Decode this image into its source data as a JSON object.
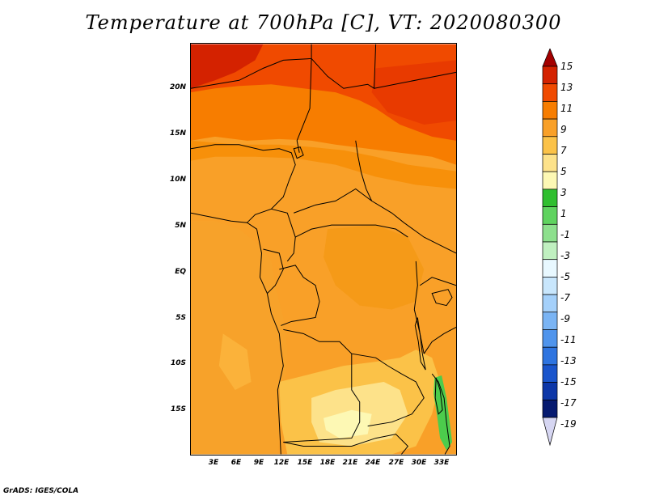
{
  "title": "Temperature at 700hPa [C], VT: 2020080300",
  "credit": "GrADS: IGES/COLA",
  "lat_labels": [
    "20N",
    "15N",
    "10N",
    "5N",
    "EQ",
    "5S",
    "10S",
    "15S"
  ],
  "lon_labels": [
    "3E",
    "6E",
    "9E",
    "12E",
    "15E",
    "18E",
    "21E",
    "24E",
    "27E",
    "30E",
    "33E"
  ],
  "colorbar": {
    "labels": [
      "15",
      "13",
      "11",
      "9",
      "7",
      "5",
      "3",
      "1",
      "-1",
      "-3",
      "-5",
      "-7",
      "-9",
      "-11",
      "-13",
      "-15",
      "-17",
      "-19"
    ],
    "colors": [
      "#a30000",
      "#d42200",
      "#f04a00",
      "#f77d00",
      "#f9a028",
      "#fbc248",
      "#fde28a",
      "#fdf8b4",
      "#2fbf2f",
      "#5fd35f",
      "#8de08d",
      "#c0f0c0",
      "#e8f8ff",
      "#c8e6fc",
      "#a4d0fa",
      "#7ab4f4",
      "#4f94ec",
      "#2e74e0",
      "#1a55cc",
      "#0d37a8",
      "#061a70",
      "#d6d6f2"
    ]
  },
  "map_fields": {
    "domain": {
      "lon_min": 0,
      "lon_max": 35,
      "lat_min": -20,
      "lat_max": 24.5
    },
    "description_colors": {
      "north_hot": "#d42200",
      "north_warm": "#f04a00",
      "central": "#f9a028",
      "ocean": "#f7b030",
      "south_cool": "#fbc248",
      "lake_green": "#4ccc4c"
    }
  }
}
